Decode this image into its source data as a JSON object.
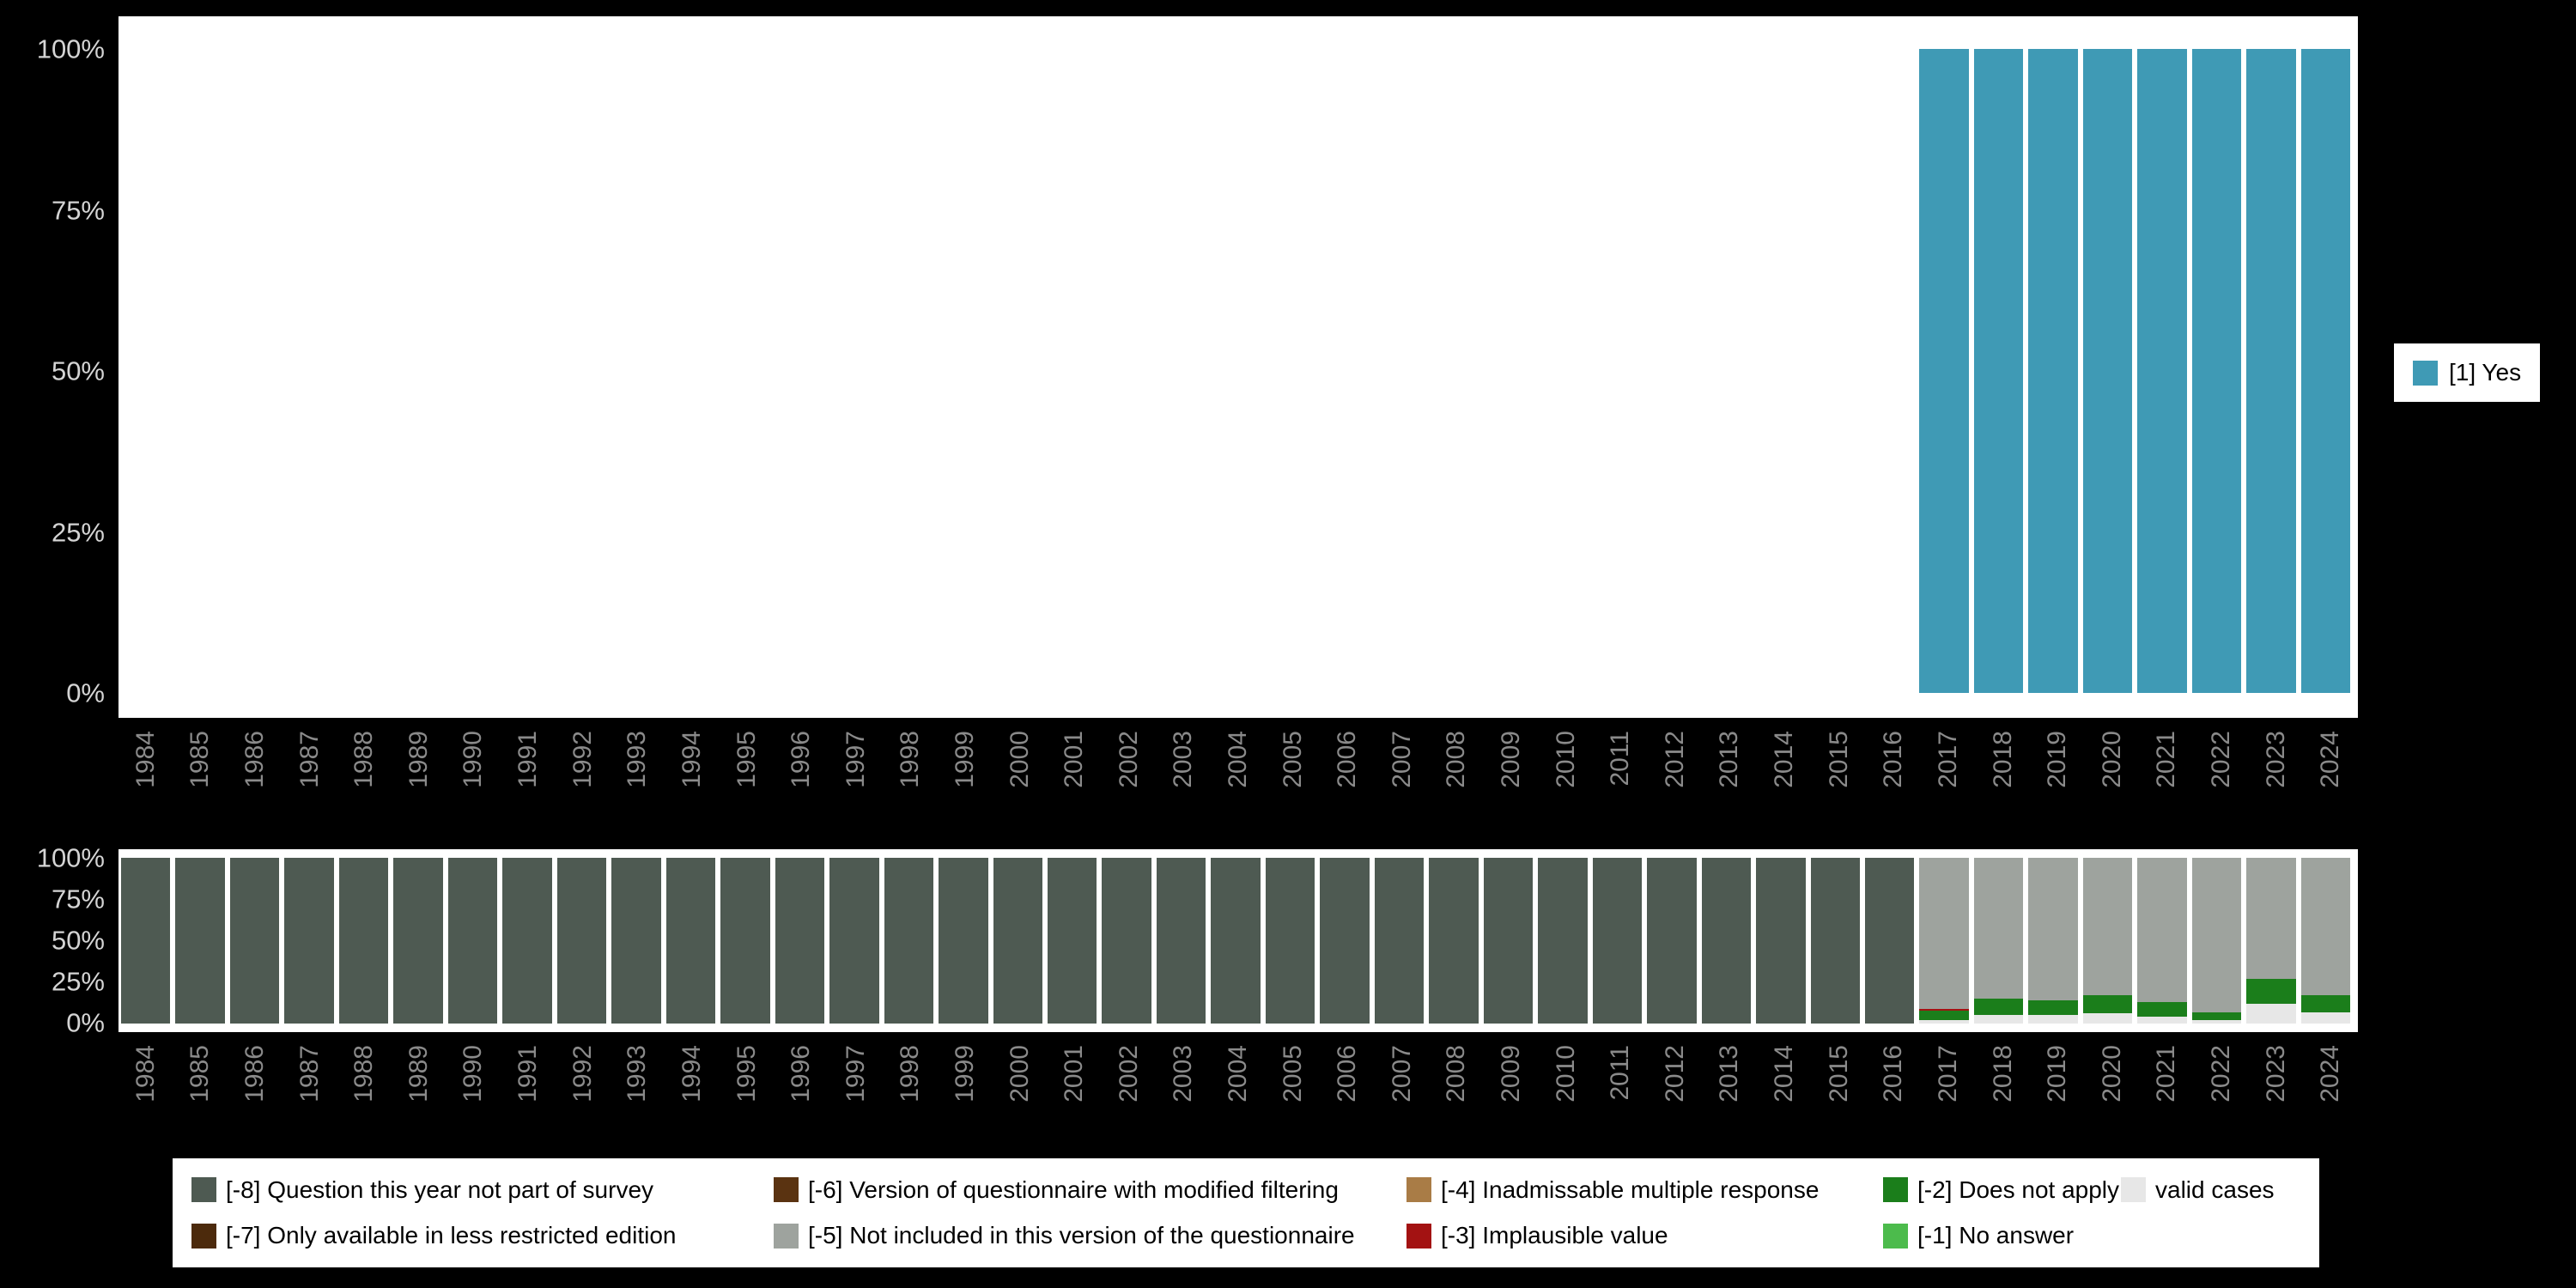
{
  "colors": {
    "background": "#000000",
    "panel": "#ffffff",
    "percent_tick": "#d4d4d4",
    "year_tick": "#8a8a8a"
  },
  "legend_right": {
    "items": [
      {
        "label": "[1] Yes",
        "color": "#3f9ab5"
      }
    ]
  },
  "legend_bottom": {
    "items": [
      {
        "label": "[-8] Question this year not part of survey",
        "color": "#4e5a52"
      },
      {
        "label": "[-6] Version of questionnaire with modified filtering",
        "color": "#5a3311"
      },
      {
        "label": "[-4] Inadmissable multiple response",
        "color": "#a97c46"
      },
      {
        "label": "[-2] Does not apply",
        "color": "#1b7e1b"
      },
      {
        "label": "valid cases",
        "color": "#e7e7e7"
      },
      {
        "label": "[-7] Only available in less restricted edition",
        "color": "#4c2a0c"
      },
      {
        "label": "[-5] Not included in this version of the questionnaire",
        "color": "#9ea39e"
      },
      {
        "label": "[-3] Implausible value",
        "color": "#a31212"
      },
      {
        "label": "[-1] No answer",
        "color": "#4cbb4c"
      }
    ]
  },
  "chart_data": [
    {
      "type": "bar",
      "stacked": true,
      "title": "",
      "xlabel": "",
      "ylabel": "",
      "ylim": [
        0,
        100
      ],
      "yticks": [
        "100%",
        "75%",
        "50%",
        "25%",
        "0%"
      ],
      "legend_position": "right",
      "grid": false,
      "categories": [
        "1984",
        "1985",
        "1986",
        "1987",
        "1988",
        "1989",
        "1990",
        "1991",
        "1992",
        "1993",
        "1994",
        "1995",
        "1996",
        "1997",
        "1998",
        "1999",
        "2000",
        "2001",
        "2002",
        "2003",
        "2004",
        "2005",
        "2006",
        "2007",
        "2008",
        "2009",
        "2010",
        "2011",
        "2012",
        "2013",
        "2014",
        "2015",
        "2016",
        "2017",
        "2018",
        "2019",
        "2020",
        "2021",
        "2022",
        "2023",
        "2024"
      ],
      "series": [
        {
          "name": "[1] Yes",
          "color": "#3f9ab5",
          "values": [
            0,
            0,
            0,
            0,
            0,
            0,
            0,
            0,
            0,
            0,
            0,
            0,
            0,
            0,
            0,
            0,
            0,
            0,
            0,
            0,
            0,
            0,
            0,
            0,
            0,
            0,
            0,
            0,
            0,
            0,
            0,
            0,
            0,
            100,
            100,
            100,
            100,
            100,
            100,
            100,
            100
          ]
        }
      ]
    },
    {
      "type": "bar",
      "stacked": true,
      "title": "",
      "xlabel": "",
      "ylabel": "",
      "ylim": [
        0,
        100
      ],
      "yticks": [
        "100%",
        "75%",
        "50%",
        "25%",
        "0%"
      ],
      "legend_position": "bottom",
      "grid": false,
      "categories": [
        "1984",
        "1985",
        "1986",
        "1987",
        "1988",
        "1989",
        "1990",
        "1991",
        "1992",
        "1993",
        "1994",
        "1995",
        "1996",
        "1997",
        "1998",
        "1999",
        "2000",
        "2001",
        "2002",
        "2003",
        "2004",
        "2005",
        "2006",
        "2007",
        "2008",
        "2009",
        "2010",
        "2011",
        "2012",
        "2013",
        "2014",
        "2015",
        "2016",
        "2017",
        "2018",
        "2019",
        "2020",
        "2021",
        "2022",
        "2023",
        "2024"
      ],
      "series": [
        {
          "name": "valid cases",
          "color": "#e7e7e7",
          "values": [
            0,
            0,
            0,
            0,
            0,
            0,
            0,
            0,
            0,
            0,
            0,
            0,
            0,
            0,
            0,
            0,
            0,
            0,
            0,
            0,
            0,
            0,
            0,
            0,
            0,
            0,
            0,
            0,
            0,
            0,
            0,
            0,
            0,
            2,
            5,
            5,
            6,
            4,
            2,
            12,
            7
          ]
        },
        {
          "name": "[-1] No answer",
          "color": "#4cbb4c",
          "values": [
            0,
            0,
            0,
            0,
            0,
            0,
            0,
            0,
            0,
            0,
            0,
            0,
            0,
            0,
            0,
            0,
            0,
            0,
            0,
            0,
            0,
            0,
            0,
            0,
            0,
            0,
            0,
            0,
            0,
            0,
            0,
            0,
            0,
            0,
            0,
            0,
            0,
            0,
            0,
            0,
            0
          ]
        },
        {
          "name": "[-2] Does not apply",
          "color": "#1b7e1b",
          "values": [
            0,
            0,
            0,
            0,
            0,
            0,
            0,
            0,
            0,
            0,
            0,
            0,
            0,
            0,
            0,
            0,
            0,
            0,
            0,
            0,
            0,
            0,
            0,
            0,
            0,
            0,
            0,
            0,
            0,
            0,
            0,
            0,
            0,
            6,
            10,
            9,
            11,
            9,
            5,
            15,
            10
          ]
        },
        {
          "name": "[-3] Implausible value",
          "color": "#a31212",
          "values": [
            0,
            0,
            0,
            0,
            0,
            0,
            0,
            0,
            0,
            0,
            0,
            0,
            0,
            0,
            0,
            0,
            0,
            0,
            0,
            0,
            0,
            0,
            0,
            0,
            0,
            0,
            0,
            0,
            0,
            0,
            0,
            0,
            0,
            1,
            0,
            0,
            0,
            0,
            0,
            0,
            0
          ]
        },
        {
          "name": "[-4] Inadmissable multiple response",
          "color": "#a97c46",
          "values": [
            0,
            0,
            0,
            0,
            0,
            0,
            0,
            0,
            0,
            0,
            0,
            0,
            0,
            0,
            0,
            0,
            0,
            0,
            0,
            0,
            0,
            0,
            0,
            0,
            0,
            0,
            0,
            0,
            0,
            0,
            0,
            0,
            0,
            0,
            0,
            0,
            0,
            0,
            0,
            0,
            0
          ]
        },
        {
          "name": "[-5] Not included in this version of the questionnaire",
          "color": "#9ea39e",
          "values": [
            0,
            0,
            0,
            0,
            0,
            0,
            0,
            0,
            0,
            0,
            0,
            0,
            0,
            0,
            0,
            0,
            0,
            0,
            0,
            0,
            0,
            0,
            0,
            0,
            0,
            0,
            0,
            0,
            0,
            0,
            0,
            0,
            0,
            91,
            85,
            86,
            83,
            87,
            93,
            73,
            83
          ]
        },
        {
          "name": "[-6] Version of questionnaire with modified filtering",
          "color": "#5a3311",
          "values": [
            0,
            0,
            0,
            0,
            0,
            0,
            0,
            0,
            0,
            0,
            0,
            0,
            0,
            0,
            0,
            0,
            0,
            0,
            0,
            0,
            0,
            0,
            0,
            0,
            0,
            0,
            0,
            0,
            0,
            0,
            0,
            0,
            0,
            0,
            0,
            0,
            0,
            0,
            0,
            0,
            0
          ]
        },
        {
          "name": "[-7] Only available in less restricted edition",
          "color": "#4c2a0c",
          "values": [
            0,
            0,
            0,
            0,
            0,
            0,
            0,
            0,
            0,
            0,
            0,
            0,
            0,
            0,
            0,
            0,
            0,
            0,
            0,
            0,
            0,
            0,
            0,
            0,
            0,
            0,
            0,
            0,
            0,
            0,
            0,
            0,
            0,
            0,
            0,
            0,
            0,
            0,
            0,
            0,
            0
          ]
        },
        {
          "name": "[-8] Question this year not part of survey",
          "color": "#4e5a52",
          "values": [
            100,
            100,
            100,
            100,
            100,
            100,
            100,
            100,
            100,
            100,
            100,
            100,
            100,
            100,
            100,
            100,
            100,
            100,
            100,
            100,
            100,
            100,
            100,
            100,
            100,
            100,
            100,
            100,
            100,
            100,
            100,
            100,
            100,
            0,
            0,
            0,
            0,
            0,
            0,
            0,
            0
          ]
        }
      ]
    }
  ]
}
